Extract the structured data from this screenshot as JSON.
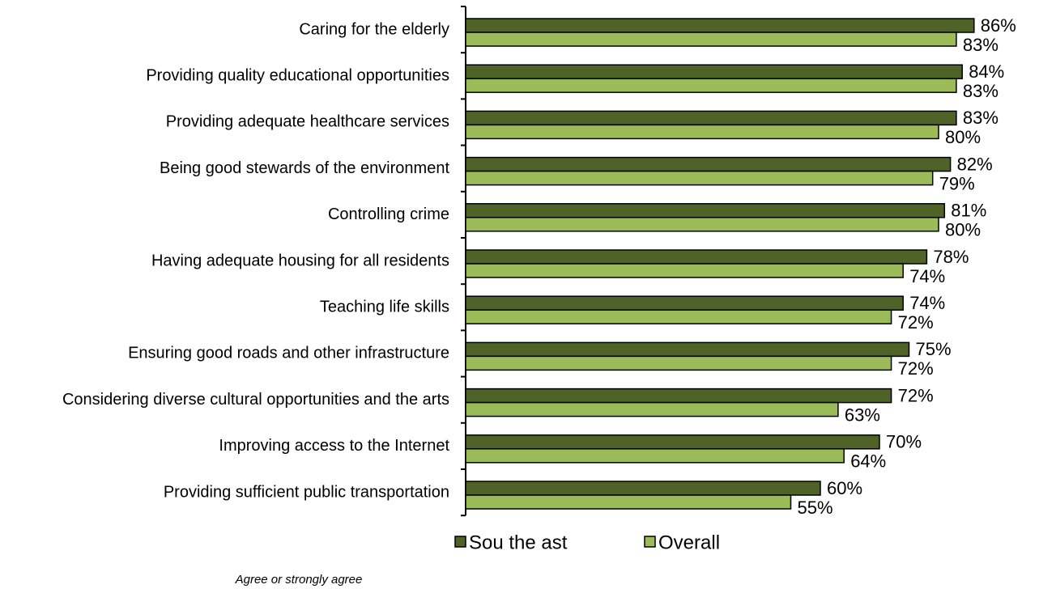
{
  "chart_data": {
    "type": "bar",
    "orientation": "horizontal",
    "categories": [
      "Caring for the elderly",
      "Providing quality educational opportunities",
      "Providing adequate healthcare services",
      "Being good stewards of the environment",
      "Controlling crime",
      "Having adequate housing for all residents",
      "Teaching life skills",
      "Ensuring good roads and other infrastructure",
      "Considering diverse cultural opportunities and the arts",
      "Improving access to the Internet",
      "Providing sufficient public transportation"
    ],
    "series": [
      {
        "name": "Southeast",
        "legend_label": "Sou the ast",
        "color": "#4f6228",
        "values": [
          86,
          84,
          83,
          82,
          81,
          78,
          74,
          75,
          72,
          70,
          60
        ],
        "labels": [
          "86%",
          "84%",
          "83%",
          "82%",
          "81%",
          "78%",
          "74%",
          "75%",
          "72%",
          "70%",
          "60%"
        ]
      },
      {
        "name": "Overall",
        "legend_label": "Overall",
        "color": "#9bbb59",
        "values": [
          83,
          83,
          80,
          79,
          80,
          74,
          72,
          72,
          63,
          64,
          55
        ],
        "labels": [
          "83%",
          "83%",
          "80%",
          "79%",
          "80%",
          "74%",
          "72%",
          "72%",
          "63%",
          "64%",
          "55%"
        ]
      }
    ],
    "xlabel": "Agree or strongly agree",
    "xlim": [
      0,
      100
    ],
    "grid": false,
    "legend_position": "bottom"
  }
}
